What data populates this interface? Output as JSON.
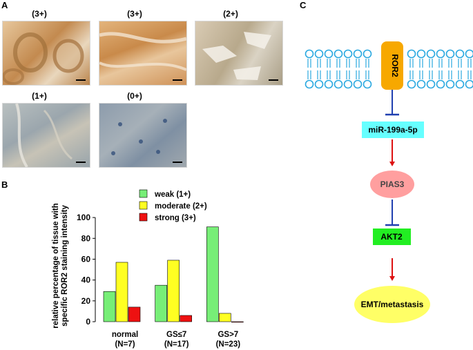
{
  "panels": {
    "a": {
      "letter": "A"
    },
    "b": {
      "letter": "B"
    },
    "c": {
      "letter": "C"
    }
  },
  "micrographs": [
    {
      "grade": "(3+)",
      "tone": "#c89a62"
    },
    {
      "grade": "(3+)",
      "tone": "#d09a5c"
    },
    {
      "grade": "(2+)",
      "tone": "#b9b2a0"
    },
    {
      "grade": "(1+)",
      "tone": "#a8afb2"
    },
    {
      "grade": "(0+)",
      "tone": "#8c9aa8"
    }
  ],
  "chart_data": {
    "type": "bar",
    "categories": [
      "normal\n(N=7)",
      "GS≤7\n(N=17)",
      "GS>7\n(N=23)"
    ],
    "category_lines": [
      [
        "normal",
        "(N=7)"
      ],
      [
        "GS≤7",
        "(N=17)"
      ],
      [
        "GS>7",
        "(N=23)"
      ]
    ],
    "series": [
      {
        "name": "weak (1+)",
        "color": "#77ee77",
        "values": [
          29,
          35,
          91
        ]
      },
      {
        "name": "moderate (2+)",
        "color": "#ffff22",
        "values": [
          57,
          59,
          8
        ]
      },
      {
        "name": "strong (3+)",
        "color": "#ee1111",
        "values": [
          14,
          6,
          0
        ]
      }
    ],
    "ylabel_lines": [
      "relative percentage of tissue with",
      "specific ROR2 staining intensity"
    ],
    "ylim": [
      0,
      110
    ],
    "yticks": [
      0,
      20,
      40,
      60,
      80,
      100
    ],
    "grid": false,
    "legend_position": "top-right"
  },
  "pathway": {
    "receptor": "ROR2",
    "mirna": "miR-199a-5p",
    "pias3": "PIAS3",
    "akt2": "AKT2",
    "outcome": "EMT/metastasis",
    "colors": {
      "membrane": "#29a8e0",
      "receptor": "#f7a800",
      "mirna_box": "#66ffff",
      "pias3": "#ff9f9f",
      "akt2": "#22ee22",
      "outcome": "#ffff66",
      "inhibit": "#1f3fb0",
      "activate": "#dd1111"
    }
  }
}
